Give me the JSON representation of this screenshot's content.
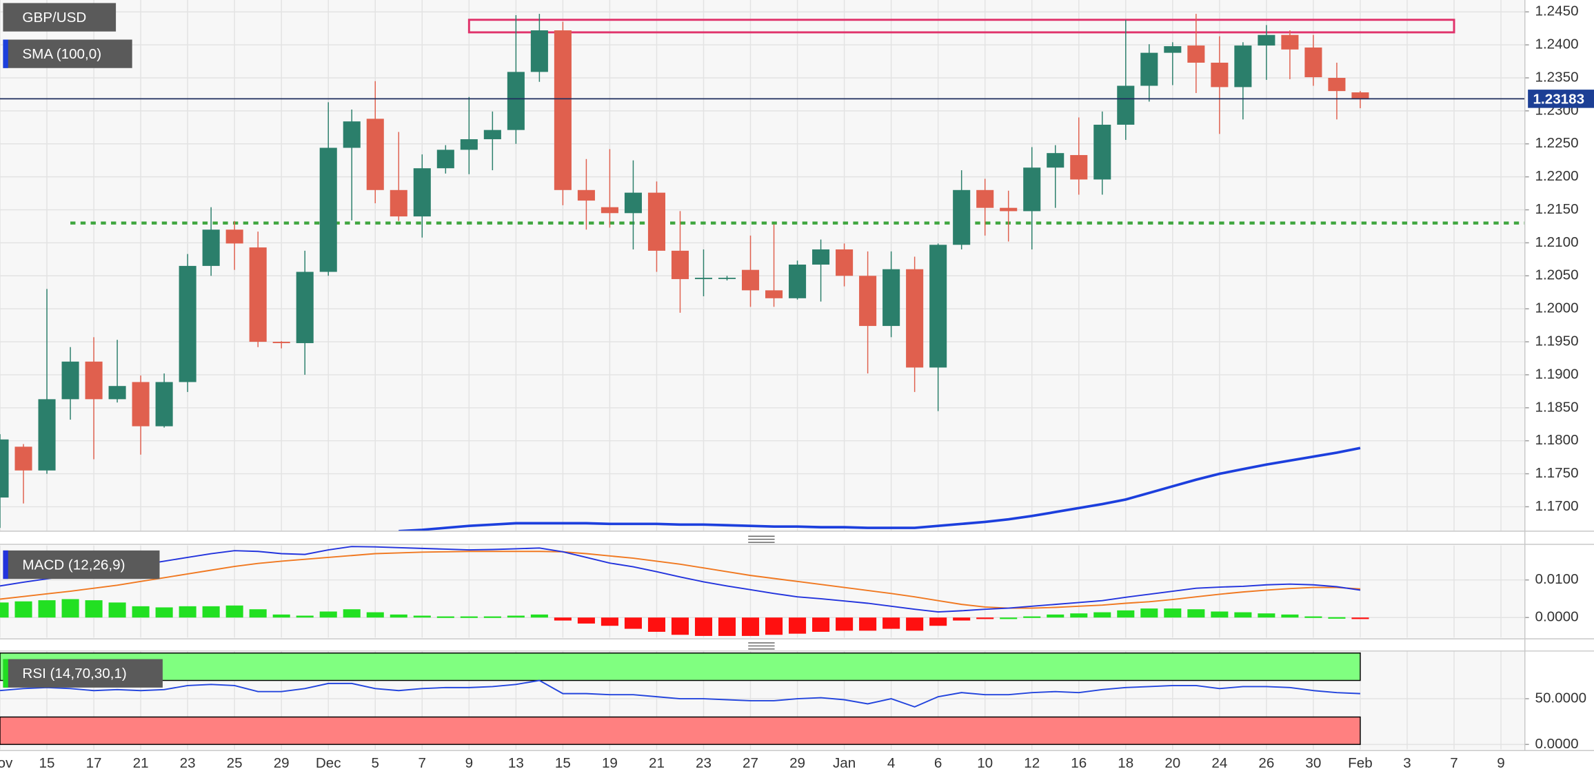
{
  "chart_data": [
    {
      "type": "candlestick",
      "title": "GBP/USD",
      "categories": [
        "Nov",
        null,
        "15",
        null,
        "17",
        null,
        "21",
        null,
        "23",
        null,
        "25",
        null,
        "29",
        null,
        "Dec",
        null,
        "5",
        null,
        "7",
        null,
        "9",
        null,
        "13",
        null,
        "15",
        null,
        "19",
        null,
        "21",
        null,
        "23",
        null,
        "27",
        null,
        "29",
        null,
        "Jan",
        null,
        "4",
        null,
        "6",
        null,
        "10",
        null,
        "12",
        null,
        "16",
        null,
        "18",
        null,
        "20",
        null,
        "24",
        null,
        "26",
        null,
        "30",
        null,
        "Feb",
        null,
        "3",
        null,
        "7",
        null,
        "9"
      ],
      "open": [
        1.1714,
        1.1791,
        1.1755,
        1.1863,
        1.192,
        1.1863,
        1.1889,
        1.1822,
        1.1889,
        1.2065,
        1.212,
        1.2093,
        1.195,
        1.1948,
        1.2056,
        1.2244,
        1.2288,
        1.218,
        1.214,
        1.2213,
        1.2241,
        1.2257,
        1.2271,
        1.2359,
        1.2422,
        1.218,
        1.2154,
        1.2145,
        1.2176,
        1.2088,
        1.2045,
        1.2046,
        1.2059,
        1.2028,
        1.2016,
        1.2067,
        1.209,
        1.205,
        1.1974,
        1.206,
        1.1911,
        1.2097,
        1.218,
        1.2153,
        1.2148,
        1.2214,
        1.2233,
        1.2196,
        1.2279,
        1.2338,
        1.2388,
        1.2399,
        1.2373,
        1.2336,
        1.2399,
        1.2415,
        1.2396,
        1.235,
        1.2328,
        null,
        null,
        null,
        null,
        null,
        null
      ],
      "high": [
        1.181,
        1.1795,
        1.203,
        1.1942,
        1.1957,
        1.1953,
        1.1899,
        1.1902,
        1.2083,
        1.2154,
        1.2133,
        1.2117,
        1.1951,
        1.2088,
        1.2313,
        1.2302,
        1.2345,
        1.2268,
        1.2234,
        1.2248,
        1.2321,
        1.2299,
        1.2445,
        1.2447,
        1.2435,
        1.2227,
        1.2242,
        1.2225,
        1.2193,
        1.2148,
        1.209,
        1.205,
        1.2111,
        1.2128,
        1.2073,
        1.2105,
        1.2099,
        1.2087,
        1.2087,
        1.2079,
        1.2099,
        1.221,
        1.2197,
        1.2179,
        1.2245,
        1.2248,
        1.229,
        1.2299,
        1.2438,
        1.2401,
        1.2404,
        1.2447,
        1.2413,
        1.2404,
        1.243,
        1.2422,
        1.2415,
        1.2373,
        1.233,
        null,
        null,
        null,
        null,
        null,
        null
      ],
      "low": [
        1.1668,
        1.1705,
        1.175,
        1.1832,
        1.1772,
        1.1858,
        1.1779,
        1.182,
        1.1874,
        1.205,
        1.2059,
        1.1942,
        1.194,
        1.19,
        1.205,
        1.2134,
        1.216,
        1.2133,
        1.2108,
        1.2205,
        1.2204,
        1.221,
        1.225,
        1.2344,
        1.2157,
        1.212,
        1.2123,
        1.209,
        1.2056,
        1.1994,
        1.2019,
        1.2043,
        1.2003,
        1.2003,
        1.2014,
        1.2011,
        1.2034,
        1.1902,
        1.1957,
        1.1874,
        1.1845,
        1.209,
        1.2111,
        1.2102,
        1.209,
        1.2153,
        1.2173,
        1.2173,
        1.2256,
        1.2314,
        1.2339,
        1.2327,
        1.2265,
        1.2287,
        1.2347,
        1.2348,
        1.2338,
        1.2287,
        1.2304,
        null,
        null,
        null,
        null,
        null,
        null
      ],
      "close": [
        1.1802,
        1.1755,
        1.1863,
        1.192,
        1.1863,
        1.1883,
        1.1822,
        1.1889,
        1.2065,
        1.212,
        1.2099,
        1.195,
        1.1948,
        1.2056,
        1.2244,
        1.2284,
        1.218,
        1.214,
        1.2213,
        1.2241,
        1.2257,
        1.2271,
        1.2359,
        1.2422,
        1.218,
        1.2164,
        1.2145,
        1.2176,
        1.2088,
        1.2045,
        1.2047,
        1.2047,
        1.2028,
        1.2016,
        1.2067,
        1.209,
        1.205,
        1.1974,
        1.206,
        1.1911,
        1.2097,
        1.218,
        1.2153,
        1.2148,
        1.2214,
        1.2236,
        1.2196,
        1.2279,
        1.2338,
        1.2388,
        1.2398,
        1.2373,
        1.2336,
        1.2399,
        1.2415,
        1.2393,
        1.2351,
        1.233,
        1.2318,
        null,
        null,
        null,
        null,
        null,
        null
      ],
      "up_color": "#2b7f6b",
      "down_color": "#e0604e",
      "series": [
        {
          "name": "SMA (100,0)",
          "color": "#1c3fdd",
          "values": [
            null,
            null,
            null,
            null,
            null,
            null,
            null,
            null,
            null,
            null,
            null,
            null,
            null,
            null,
            null,
            null,
            null,
            1.1663,
            1.1665,
            1.1668,
            1.1671,
            1.1673,
            1.1675,
            1.1675,
            1.1675,
            1.1675,
            1.1674,
            1.1674,
            1.1674,
            1.1673,
            1.1673,
            1.1672,
            1.1671,
            1.167,
            1.167,
            1.1669,
            1.1669,
            1.1668,
            1.1668,
            1.1668,
            1.1671,
            1.1674,
            1.1677,
            1.1681,
            1.1686,
            1.1692,
            1.1698,
            1.1704,
            1.1711,
            1.1721,
            1.1731,
            1.1741,
            1.175,
            1.1757,
            1.1764,
            1.177,
            1.1776,
            1.1782,
            1.1789,
            null,
            null,
            null,
            null,
            null,
            null
          ]
        }
      ],
      "last_price": {
        "value": 1.23183,
        "label": "1.23183"
      },
      "support_line": {
        "price": 1.213,
        "start_index": 3,
        "color": "#3fa63f"
      },
      "resistance_zone": {
        "low": 1.2419,
        "high": 1.2438,
        "start_index": 20,
        "end_index": 62,
        "color": "#e0336b"
      },
      "ylim": [
        1.1663,
        1.2468
      ],
      "yticks": [
        {
          "value": 1.245,
          "label": "1.2450"
        },
        {
          "value": 1.24,
          "label": "1.2400"
        },
        {
          "value": 1.235,
          "label": "1.2350"
        },
        {
          "value": 1.23,
          "label": "1.2300"
        },
        {
          "value": 1.225,
          "label": "1.2250"
        },
        {
          "value": 1.22,
          "label": "1.2200"
        },
        {
          "value": 1.215,
          "label": "1.2150"
        },
        {
          "value": 1.21,
          "label": "1.2100"
        },
        {
          "value": 1.205,
          "label": "1.2050"
        },
        {
          "value": 1.2,
          "label": "1.2000"
        },
        {
          "value": 1.195,
          "label": "1.1950"
        },
        {
          "value": 1.19,
          "label": "1.1900"
        },
        {
          "value": 1.185,
          "label": "1.1850"
        },
        {
          "value": 1.18,
          "label": "1.1800"
        },
        {
          "value": 1.175,
          "label": "1.1750"
        },
        {
          "value": 1.17,
          "label": "1.1700"
        }
      ],
      "grid": true
    },
    {
      "type": "macd",
      "title": "MACD (12,26,9)",
      "macd": [
        0.0084,
        0.0094,
        0.0103,
        0.0112,
        0.012,
        0.013,
        0.014,
        0.015,
        0.016,
        0.017,
        0.0178,
        0.0176,
        0.017,
        0.0168,
        0.018,
        0.0189,
        0.0188,
        0.0186,
        0.0184,
        0.0182,
        0.018,
        0.0181,
        0.0183,
        0.0185,
        0.0175,
        0.016,
        0.0145,
        0.0135,
        0.0122,
        0.0108,
        0.0095,
        0.0084,
        0.0074,
        0.0064,
        0.0055,
        0.005,
        0.0044,
        0.0038,
        0.003,
        0.0022,
        0.0015,
        0.0018,
        0.0022,
        0.0025,
        0.003,
        0.0035,
        0.004,
        0.0045,
        0.0054,
        0.0062,
        0.007,
        0.0078,
        0.0081,
        0.0083,
        0.0087,
        0.0089,
        0.0087,
        0.0082,
        0.0073,
        null,
        null,
        null,
        null,
        null,
        null
      ],
      "signal": [
        0.0049,
        0.0056,
        0.0063,
        0.007,
        0.0078,
        0.0086,
        0.0096,
        0.0106,
        0.0116,
        0.0126,
        0.0136,
        0.0144,
        0.015,
        0.0155,
        0.016,
        0.0165,
        0.017,
        0.0172,
        0.0174,
        0.0175,
        0.0176,
        0.0176,
        0.0176,
        0.0176,
        0.0175,
        0.017,
        0.0164,
        0.0158,
        0.015,
        0.0142,
        0.0132,
        0.0122,
        0.0112,
        0.0104,
        0.0096,
        0.0088,
        0.008,
        0.0072,
        0.0064,
        0.0055,
        0.0045,
        0.0035,
        0.0028,
        0.0025,
        0.0025,
        0.0027,
        0.003,
        0.0033,
        0.0038,
        0.0042,
        0.0048,
        0.0055,
        0.0062,
        0.0068,
        0.0073,
        0.0077,
        0.008,
        0.008,
        0.0076,
        null,
        null,
        null,
        null,
        null,
        null
      ],
      "histogram": [
        0.004,
        0.0043,
        0.0046,
        0.0049,
        0.0046,
        0.004,
        0.003,
        0.0027,
        0.003,
        0.003,
        0.0032,
        0.0022,
        0.0008,
        0.0005,
        0.0016,
        0.0022,
        0.0014,
        0.0008,
        0.0005,
        0.0003,
        0.0003,
        0.0003,
        0.0005,
        0.0008,
        -0.0008,
        -0.0016,
        -0.0022,
        -0.003,
        -0.0038,
        -0.0046,
        -0.0049,
        -0.0049,
        -0.0049,
        -0.0046,
        -0.0043,
        -0.0038,
        -0.0035,
        -0.0035,
        -0.003,
        -0.0035,
        -0.0022,
        -0.0008,
        -0.0003,
        0,
        0.0003,
        0.0008,
        0.0011,
        0.0014,
        0.0019,
        0.0024,
        0.0024,
        0.0022,
        0.0016,
        0.0014,
        0.0011,
        0.0008,
        0.0003,
        0.0001,
        -0.0003,
        null,
        null,
        null,
        null,
        null,
        null
      ],
      "macd_color": "#2233dd",
      "signal_color": "#f07820",
      "positive_color": "#22e022",
      "negative_color": "#ff1010",
      "ylim": [
        -0.0054,
        0.0192
      ],
      "yticks": [
        {
          "value": 0.01,
          "label": "0.0100"
        },
        {
          "value": 0,
          "label": "0.0000"
        }
      ],
      "grid": true
    },
    {
      "type": "rsi",
      "title": "RSI (14,70,30,1)",
      "values": [
        58.9,
        61.1,
        62.2,
        61.1,
        58.9,
        60,
        58.9,
        60,
        64.4,
        65.6,
        64.4,
        57.8,
        57.8,
        61.1,
        66.7,
        66.7,
        61.1,
        58.9,
        61.1,
        62.2,
        62.2,
        63.3,
        65.6,
        70,
        55.6,
        55.6,
        54.4,
        54.4,
        52.2,
        50,
        50,
        48.9,
        47.8,
        47.8,
        50,
        51.1,
        48.9,
        44.4,
        50,
        41.1,
        52.2,
        56.7,
        54.4,
        54.4,
        56.7,
        57.8,
        56.7,
        60,
        62.2,
        63.3,
        64.4,
        64.4,
        61.1,
        63.3,
        63.3,
        62.2,
        58.9,
        56.7,
        55.6,
        null,
        null,
        null,
        null,
        null,
        null
      ],
      "color": "#2244dd",
      "overbought": 70,
      "oversold": 30,
      "band_top": 100,
      "band_bottom": 0,
      "overbought_color": "#80ff80",
      "oversold_color": "#ff8080",
      "ylim": [
        -5.6,
        102.2
      ],
      "yticks": [
        {
          "value": 50,
          "label": "50.0000"
        },
        {
          "value": 0,
          "label": "0.0000"
        }
      ],
      "grid": true
    }
  ]
}
